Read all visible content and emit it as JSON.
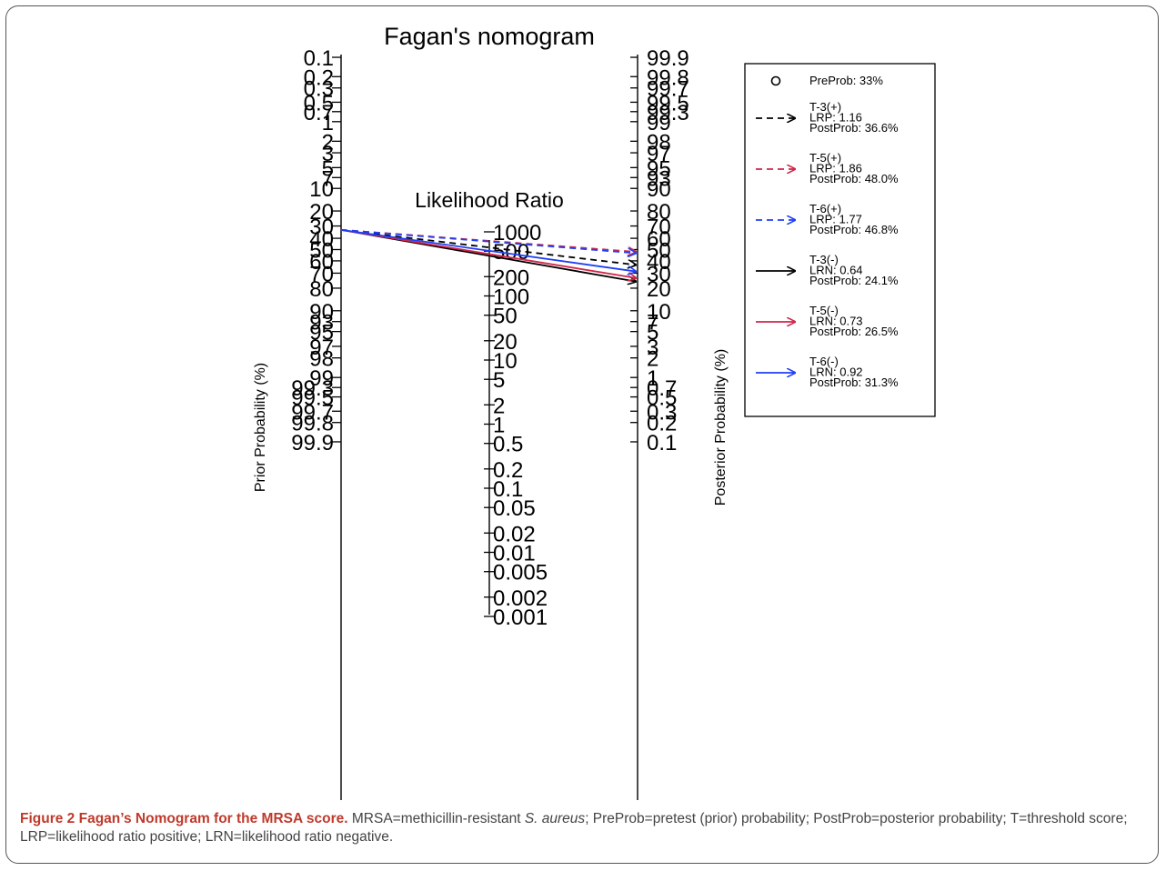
{
  "chart_data": {
    "type": "nomogram",
    "title": "Fagan's nomogram",
    "middle_axis_title": "Likelihood Ratio",
    "left_axis_label": "Prior Probability (%)",
    "right_axis_label": "Posterior Probability (%)",
    "left_ticks": [
      "0.1",
      "0.2",
      "0.3",
      "0.5",
      "0.7",
      "1",
      "2",
      "3",
      "5",
      "7",
      "10",
      "20",
      "30",
      "40",
      "50",
      "60",
      "70",
      "80",
      "90",
      "93",
      "95",
      "97",
      "98",
      "99",
      "99.3",
      "99.5",
      "99.7",
      "99.8",
      "99.9"
    ],
    "middle_ticks": [
      "1000",
      "500",
      "200",
      "100",
      "50",
      "20",
      "10",
      "5",
      "2",
      "1",
      "0.5",
      "0.2",
      "0.1",
      "0.05",
      "0.02",
      "0.01",
      "0.005",
      "0.002",
      "0.001"
    ],
    "right_ticks": [
      "99.9",
      "99.8",
      "99.7",
      "99.5",
      "99.3",
      "99",
      "98",
      "97",
      "95",
      "93",
      "90",
      "80",
      "70",
      "60",
      "50",
      "40",
      "30",
      "20",
      "10",
      "7",
      "5",
      "3",
      "2",
      "1",
      "0.7",
      "0.5",
      "0.3",
      "0.2",
      "0.1"
    ],
    "pre_probability": 33,
    "preprob_label": "PreProb: 33%",
    "series": [
      {
        "name": "T-3(+)",
        "ratio_label": "LRP: 1.16",
        "lr": 1.16,
        "post_label": "PostProb: 36.6%",
        "post": 36.6,
        "color": "#000000",
        "dashed": true
      },
      {
        "name": "T-5(+)",
        "ratio_label": "LRP: 1.86",
        "lr": 1.86,
        "post_label": "PostProb: 48.0%",
        "post": 48.0,
        "color": "#d1264a",
        "dashed": true
      },
      {
        "name": "T-6(+)",
        "ratio_label": "LRP: 1.77",
        "lr": 1.77,
        "post_label": "PostProb: 46.8%",
        "post": 46.8,
        "color": "#1f3ff5",
        "dashed": true
      },
      {
        "name": "T-3(-)",
        "ratio_label": "LRN: 0.64",
        "lr": 0.64,
        "post_label": "PostProb: 24.1%",
        "post": 24.1,
        "color": "#000000",
        "dashed": false
      },
      {
        "name": "T-5(-)",
        "ratio_label": "LRN: 0.73",
        "lr": 0.73,
        "post_label": "PostProb: 26.5%",
        "post": 26.5,
        "color": "#d1264a",
        "dashed": false
      },
      {
        "name": "T-6(-)",
        "ratio_label": "LRN: 0.92",
        "lr": 0.92,
        "post_label": "PostProb: 31.3%",
        "post": 31.3,
        "color": "#1f3ff5",
        "dashed": false
      }
    ],
    "legend_position": "top-right"
  },
  "caption": {
    "figure_label": "Figure 2",
    "title": "Fagan’s Nomogram for the MRSA score.",
    "text_1": " MRSA=methicillin-resistant ",
    "italic": "S. aureus",
    "text_2": "; PreProb=pretest (prior) probability; PostProb=posterior probability; T=threshold score; LRP=likelihood ratio positive; LRN=likelihood ratio negative."
  }
}
